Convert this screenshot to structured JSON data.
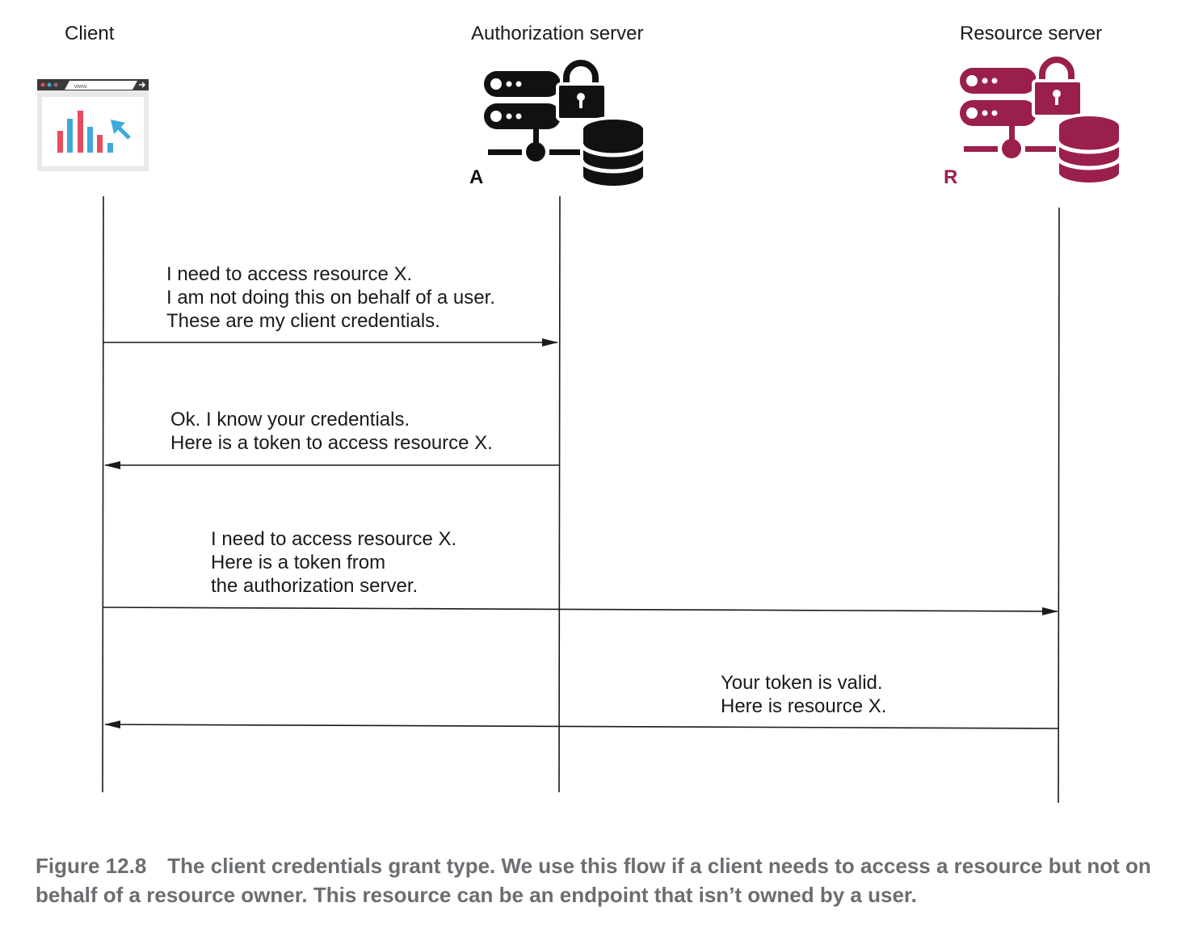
{
  "actors": {
    "client": {
      "label": "Client"
    },
    "auth": {
      "label": "Authorization server",
      "tag": "A"
    },
    "resource": {
      "label": "Resource server",
      "tag": "R"
    }
  },
  "client_icon": {
    "url_text": "www."
  },
  "messages": [
    {
      "text": "I need to access resource X.\nI am not doing this on behalf of a user.\nThese are my client credentials.",
      "from": "client",
      "to": "auth"
    },
    {
      "text": "Ok. I know your credentials.\nHere is a token to access resource X.",
      "from": "auth",
      "to": "client"
    },
    {
      "text": "I need to access resource X.\nHere is a token from\nthe authorization server.",
      "from": "client",
      "to": "resource"
    },
    {
      "text": "Your token is valid.\nHere is resource X.",
      "from": "resource",
      "to": "client"
    }
  ],
  "caption": {
    "figure": "Figure 12.8",
    "text": "The client credentials grant type. We use this flow if a client needs to access a resource but not on behalf of a resource owner. This resource can be an endpoint that isn’t owned by a user."
  },
  "colors": {
    "auth": "#111111",
    "resource": "#9b1f4c",
    "line": "#1a1a1a",
    "caption": "#6b6e71"
  }
}
